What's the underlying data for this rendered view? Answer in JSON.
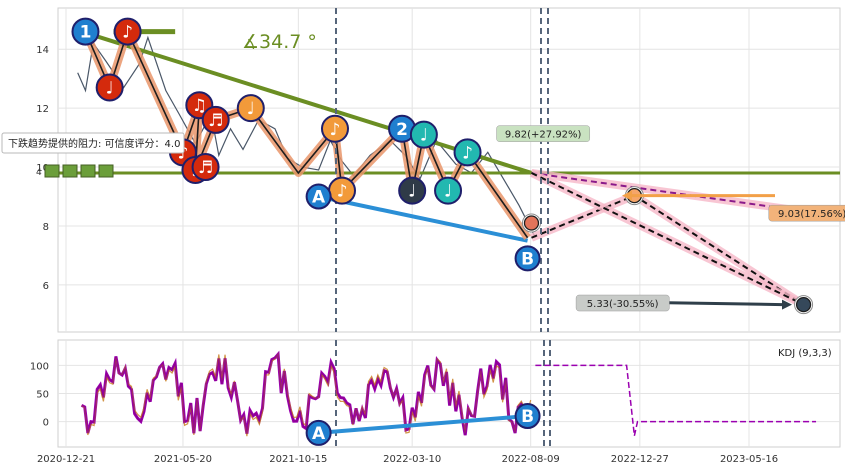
{
  "chart_data": [
    {
      "type": "line",
      "panel": "price",
      "x_dates": [
        "2020-12-21",
        "2021-05-20",
        "2021-10-15",
        "2022-03-10",
        "2022-08-09",
        "2022-12-27",
        "2023-05-16"
      ],
      "y_ticks": [
        6,
        8,
        10,
        12,
        14
      ],
      "ylim": [
        4.4,
        15.4
      ],
      "grid": true,
      "price_path": [
        [
          "2021-01-05",
          13.2
        ],
        [
          "2021-01-15",
          12.6
        ],
        [
          "2021-01-25",
          14.2
        ],
        [
          "2021-02-10",
          13.6
        ],
        [
          "2021-03-05",
          12.7
        ],
        [
          "2021-03-25",
          13.5
        ],
        [
          "2021-04-05",
          14.4
        ],
        [
          "2021-04-28",
          12.6
        ],
        [
          "2021-05-15",
          11.8
        ],
        [
          "2021-06-05",
          10.8
        ],
        [
          "2021-06-25",
          11.8
        ],
        [
          "2021-07-05",
          10.4
        ],
        [
          "2021-07-20",
          11.3
        ],
        [
          "2021-08-05",
          10.6
        ],
        [
          "2021-08-25",
          11.6
        ],
        [
          "2021-09-15",
          11.3
        ],
        [
          "2021-10-01",
          10.3
        ],
        [
          "2021-10-20",
          10.0
        ],
        [
          "2021-11-10",
          9.9
        ],
        [
          "2021-11-25",
          10.9
        ],
        [
          "2021-12-10",
          10.2
        ],
        [
          "2021-12-25",
          9.7
        ],
        [
          "2022-01-15",
          10.4
        ],
        [
          "2022-02-10",
          10.9
        ],
        [
          "2022-03-01",
          10.4
        ],
        [
          "2022-03-20",
          9.6
        ],
        [
          "2022-04-10",
          10.9
        ],
        [
          "2022-05-05",
          10.1
        ],
        [
          "2022-05-25",
          9.8
        ],
        [
          "2022-06-15",
          10.5
        ],
        [
          "2022-07-05",
          9.6
        ],
        [
          "2022-07-25",
          8.7
        ],
        [
          "2022-08-15",
          7.6
        ]
      ],
      "pattern_points": [
        {
          "date": "2021-01-15",
          "value": 14.6,
          "label": "1",
          "color": "#1f7fcf"
        },
        {
          "date": "2021-02-15",
          "value": 12.7,
          "label": "♩",
          "color": "#d42a0c"
        },
        {
          "date": "2021-03-10",
          "value": 14.6,
          "label": "♪",
          "color": "#d42a0c"
        },
        {
          "date": "2021-05-20",
          "value": 10.5,
          "label": "♪",
          "color": "#d42a0c"
        },
        {
          "date": "2021-06-10",
          "value": 12.1,
          "label": "♫",
          "color": "#d42a0c"
        },
        {
          "date": "2021-06-05",
          "value": 9.9,
          "label": "♩",
          "color": "#d42a0c"
        },
        {
          "date": "2021-06-18",
          "value": 10.0,
          "label": "♬",
          "color": "#d42a0c"
        },
        {
          "date": "2021-07-01",
          "value": 11.6,
          "label": "♬",
          "color": "#d42a0c"
        },
        {
          "date": "2021-08-15",
          "value": 12.0,
          "label": "♩",
          "color": "#f29a3a"
        },
        {
          "date": "2021-12-01",
          "value": 11.3,
          "label": "♪",
          "color": "#f29a3a"
        },
        {
          "date": "2021-12-10",
          "value": 9.2,
          "label": "♪",
          "color": "#f29a3a"
        },
        {
          "date": "2022-02-25",
          "value": 11.3,
          "label": "2",
          "color": "#1f7fcf"
        },
        {
          "date": "2022-03-10",
          "value": 9.2,
          "label": "♩",
          "color": "#2f3b48"
        },
        {
          "date": "2022-03-25",
          "value": 11.1,
          "label": "♩",
          "color": "#22b8b0"
        },
        {
          "date": "2022-04-25",
          "value": 9.2,
          "label": "♩",
          "color": "#22b8b0"
        },
        {
          "date": "2022-05-20",
          "value": 10.5,
          "label": "♪",
          "color": "#22b8b0"
        }
      ],
      "anchor_points": [
        {
          "date": "2021-11-10",
          "value": 9.0,
          "label": "A",
          "color": "#1f7fcf"
        },
        {
          "date": "2022-08-05",
          "value": 6.9,
          "label": "B",
          "color": "#1f7fcf"
        }
      ],
      "angle_label": "∡34.7 °",
      "resistance_text": "下跌趋势提供的阻力: 可信度评分：4.0",
      "rating_prefix": "4",
      "rating_blocks": 4,
      "annotations": [
        {
          "text": "9.82(+27.92%)",
          "date": "2022-08-25",
          "value": 11.1,
          "bg": "#c9e2c1"
        },
        {
          "text": "9.03(17.56%)",
          "date": "2023-08-05",
          "value": 8.4,
          "bg": "#f2b37a"
        },
        {
          "text": "5.33(-30.55%)",
          "date": "2022-12-05",
          "value": 5.35,
          "bg": "#c8cbc8"
        }
      ],
      "horizontal_level": 9.8,
      "targets": [
        {
          "date": "2022-12-20",
          "value": 9.03
        },
        {
          "date": "2023-08-10",
          "value": 5.33
        }
      ],
      "colors": {
        "price": "#4a5768",
        "trendline": "#6b8e23",
        "support": "#2b8fd6",
        "wave": "#e9956a",
        "wave_alt": "#e9aa7a",
        "projection": "#f6b8c8",
        "dashed": "#8a1a8a",
        "projection_arrow": "#2f3f4a",
        "orange_arrow": "#f2a048"
      }
    },
    {
      "type": "line",
      "panel": "indicator",
      "legend": "KDJ (9,3,3)",
      "y_ticks": [
        0,
        50,
        100
      ],
      "ylim": [
        -45,
        145
      ],
      "kdj_anchor_points": [
        {
          "date": "2021-11-10",
          "value": -20,
          "label": "A"
        },
        {
          "date": "2022-08-05",
          "value": 10,
          "label": "B"
        }
      ],
      "after_level": 100,
      "future_level": 0,
      "colors": {
        "k": "#8a008a",
        "d": "#c77a1a",
        "j": "#9b00b0"
      }
    }
  ]
}
